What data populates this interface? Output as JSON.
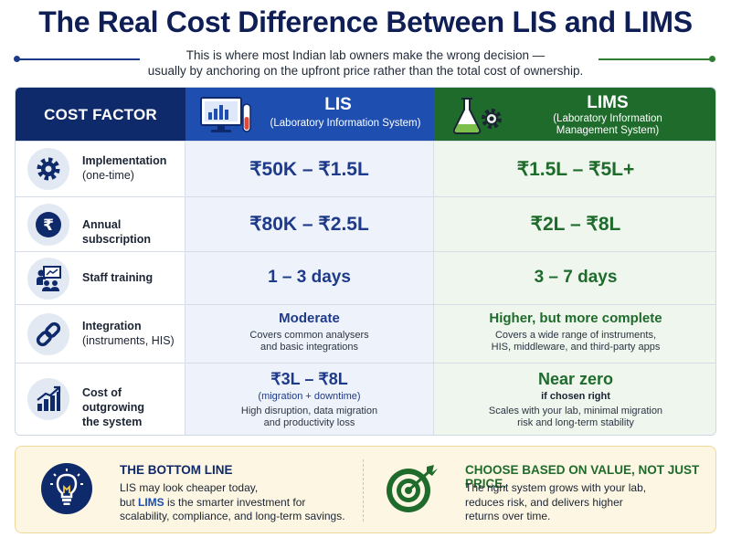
{
  "title": "The Real Cost Difference Between LIS and LIMS",
  "subtitle": {
    "line1": "This is where most Indian lab owners make the wrong decision —",
    "line2": "usually by anchoring on the upfront price rather than the total cost of ownership."
  },
  "header": {
    "factor": "COST FACTOR",
    "lis_name": "LIS",
    "lis_full": "(Laboratory Information System)",
    "lims_name": "LIMS",
    "lims_full_1": "(Laboratory Information",
    "lims_full_2": "Management System)"
  },
  "rows": [
    {
      "factor": "Implementation",
      "factor_sub": "(one-time)",
      "icon": "gear-icon",
      "lis": "₹50K – ₹1.5L",
      "lims": "₹1.5L – ₹5L+"
    },
    {
      "factor": "Annual subscription",
      "icon": "rupee-icon",
      "lis": "₹80K – ₹2.5L",
      "lims": "₹2L – ₹8L"
    },
    {
      "factor": "Staff training",
      "icon": "training-icon",
      "lis": "1 – 3 days",
      "lims": "3 – 7 days"
    },
    {
      "factor": "Integration",
      "factor_sub": "(instruments, HIS)",
      "icon": "link-icon",
      "lis": "Moderate",
      "lis_note_1": "Covers common analysers",
      "lis_note_2": "and basic integrations",
      "lims": "Higher, but more complete",
      "lims_note_1": "Covers a wide range of instruments,",
      "lims_note_2": "HIS, middleware, and third-party apps"
    },
    {
      "factor": "Cost of outgrowing",
      "factor_2": "the system",
      "icon": "growth-chart-icon",
      "lis": "₹3L – ₹8L",
      "lis_qual": "(migration + downtime)",
      "lis_note_1": "High disruption, data migration",
      "lis_note_2": "and productivity loss",
      "lims": "Near zero",
      "lims_qual": "if chosen right",
      "lims_note_1": "Scales with your lab, minimal migration",
      "lims_note_2": "risk and long-term stability"
    }
  ],
  "bottom": {
    "left_title": "THE BOTTOM LINE",
    "left_l1": "LIS may look cheaper today,",
    "left_l2a": "but ",
    "left_l2b": "LIMS",
    "left_l2c": " is the smarter investment for",
    "left_l3": "scalability, compliance, and long-term savings.",
    "right_title": "CHOOSE BASED ON VALUE, NOT JUST PRICE.",
    "right_l1": "The right system grows with your lab,",
    "right_l2": "reduces risk, and delivers higher",
    "right_l3": "returns over time."
  },
  "colors": {
    "navy": "#0f2a6b",
    "lis_blue": "#1d4eb0",
    "lims_green": "#1f6b2c",
    "bottom_bg": "#fdf6e3"
  }
}
